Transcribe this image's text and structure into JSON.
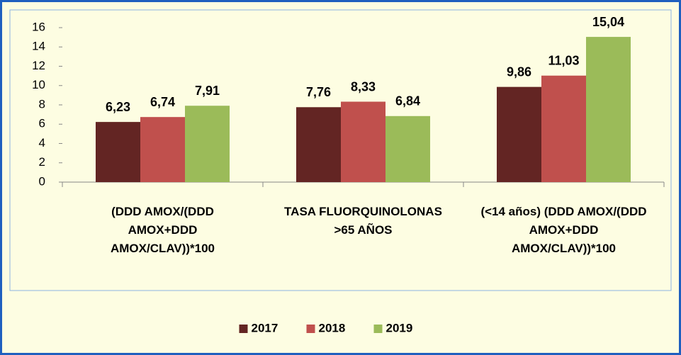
{
  "chart_data": {
    "type": "bar",
    "categories": [
      "(DDD AMOX/(DDD AMOX+DDD AMOX/CLAV))*100",
      "TASA FLUORQUINOLONAS >65 AÑOS",
      "(<14 años) (DDD AMOX/(DDD AMOX+DDD AMOX/CLAV))*100"
    ],
    "series": [
      {
        "name": "2017",
        "color": "#632523",
        "values": [
          6.23,
          7.76,
          9.86
        ],
        "value_labels": [
          "6,23",
          "7,76",
          "9,86"
        ]
      },
      {
        "name": "2018",
        "color": "#c0504d",
        "values": [
          6.74,
          8.33,
          11.03
        ],
        "value_labels": [
          "6,74",
          "8,33",
          "11,03"
        ]
      },
      {
        "name": "2019",
        "color": "#9bbb59",
        "values": [
          7.91,
          6.84,
          15.04
        ],
        "value_labels": [
          "7,91",
          "6,84",
          "15,04"
        ]
      }
    ],
    "ylim": [
      0,
      16
    ],
    "yticks": [
      0,
      2,
      4,
      6,
      8,
      10,
      12,
      14,
      16
    ],
    "legend": "bottom"
  }
}
